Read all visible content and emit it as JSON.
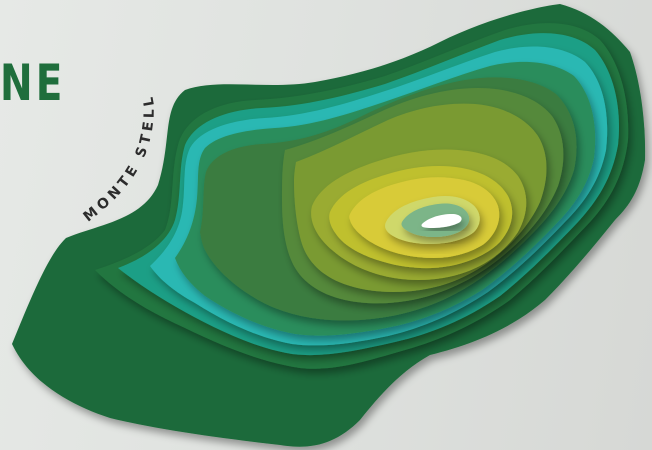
{
  "heading": "NE",
  "curved_label": "MONTE STELLA",
  "colors": {
    "background": "#e3e6e3",
    "heading": "#1f6e3c",
    "label": "#2c2c2c",
    "layers": [
      "#1e6b3a",
      "#23763f",
      "#1d9f86",
      "#2ab8b3",
      "#2a8d5b",
      "#3b7c3f",
      "#55893a",
      "#7a9a33",
      "#9aab30",
      "#bfc02f",
      "#d8cb37",
      "#cfd86a",
      "#7bb588",
      "#ffffff"
    ]
  }
}
